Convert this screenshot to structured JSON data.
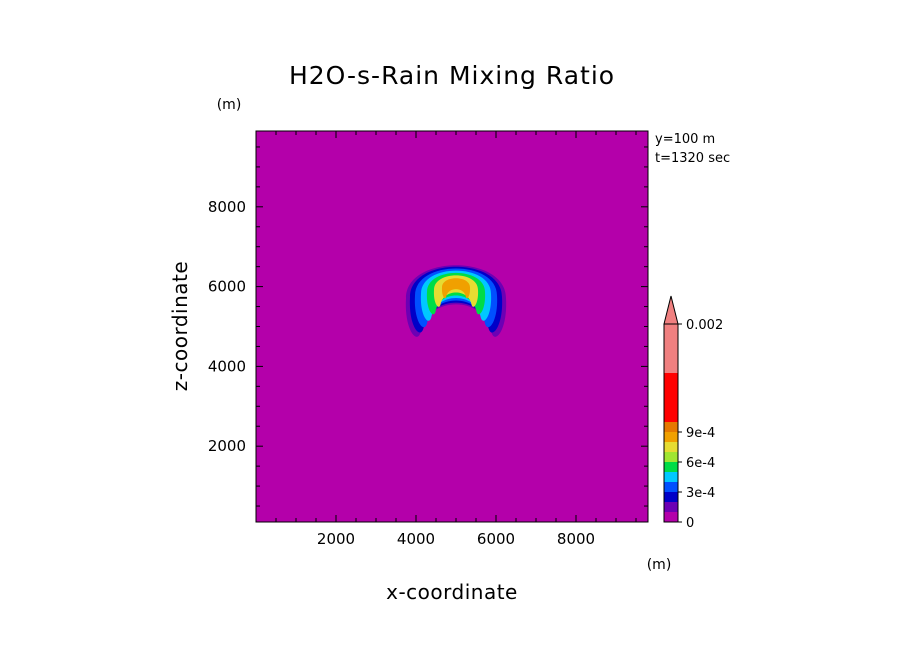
{
  "chart_data": {
    "type": "heatmap",
    "title": "H2O-s-Rain Mixing Ratio",
    "xlabel": "x-coordinate",
    "ylabel": "z-coordinate",
    "x_unit": "(m)",
    "y_unit": "(m)",
    "xlim": [
      0,
      9800
    ],
    "ylim": [
      100,
      9900
    ],
    "x_ticks": [
      2000,
      4000,
      6000,
      8000
    ],
    "y_ticks": [
      2000,
      4000,
      6000,
      8000
    ],
    "x_tick_labels": [
      "2000",
      "4000",
      "6000",
      "8000"
    ],
    "y_tick_labels": [
      "2000",
      "4000",
      "6000",
      "8000"
    ],
    "info_lines": [
      "y=100 m",
      "t=1320 sec"
    ],
    "background_level_color": "#B400AA",
    "feature": {
      "shape": "crescent",
      "center_x": 5000,
      "top_z": 6700,
      "bottom_z": 4500,
      "left_x": 3800,
      "right_x": 6300,
      "max_value_range": "6e-4 to 9e-4"
    },
    "colorbar": {
      "levels": [
        0,
        0.0001,
        0.0002,
        0.0003,
        0.0004,
        0.0005,
        0.0006,
        0.0007,
        0.0008,
        0.0009,
        0.001,
        0.0015,
        0.002
      ],
      "colors": [
        "#B400AA",
        "#6C00B4",
        "#0000C8",
        "#0050FF",
        "#00C8FF",
        "#00DC46",
        "#A0E632",
        "#E6DC32",
        "#F0A000",
        "#E67800",
        "#FF0000",
        "#F08080"
      ],
      "over_color": "#F08080",
      "extend": "max",
      "tick_labels": [
        "0",
        "3e-4",
        "6e-4",
        "9e-4",
        "0.002"
      ],
      "tick_values": [
        0,
        0.0003,
        0.0006,
        0.0009,
        0.002
      ]
    }
  }
}
